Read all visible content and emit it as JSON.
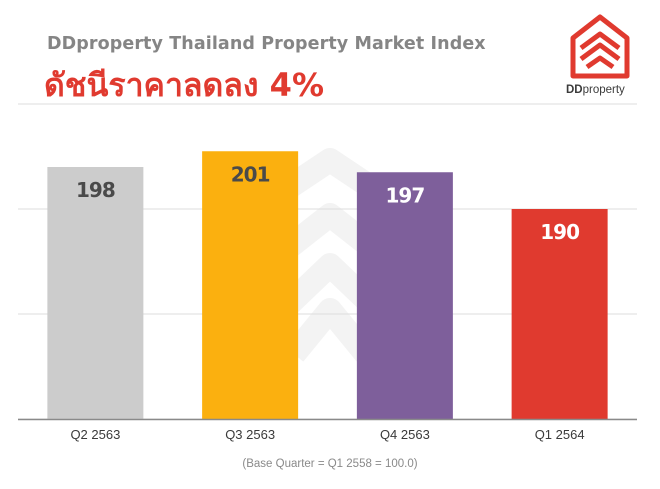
{
  "subtitle": "DDproperty Thailand Property Market Index",
  "headline": "ดัชนีราคาลดลง 4%",
  "logo": {
    "text_bold": "DD",
    "text_regular": "property",
    "color": "#e03a2f"
  },
  "footnote": "(Base Quarter = Q1 2558 = 100.0)",
  "chart_data": {
    "type": "bar",
    "categories": [
      "Q2 2563",
      "Q3 2563",
      "Q4 2563",
      "Q1 2564"
    ],
    "values": [
      198,
      201,
      197,
      190
    ],
    "colors": [
      "#cccccc",
      "#fbb00f",
      "#7e5f9b",
      "#e03a2f"
    ],
    "label_colors": [
      "#4a4a4a",
      "#4a4a4a",
      "#ffffff",
      "#ffffff"
    ],
    "ylim": [
      150,
      210
    ],
    "gridlines": [
      150,
      170,
      190,
      210
    ],
    "grid": true,
    "legend": "none"
  }
}
